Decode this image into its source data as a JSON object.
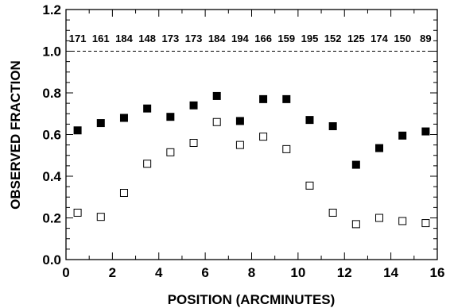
{
  "chart_data": {
    "type": "scatter",
    "xlabel": "POSITION (ARCMINUTES)",
    "ylabel": "OBSERVED FRACTION",
    "xlim": [
      0,
      16
    ],
    "ylim": [
      0,
      1.2
    ],
    "x_ticks": [
      "0",
      "2",
      "4",
      "6",
      "8",
      "10",
      "12",
      "14",
      "16"
    ],
    "y_ticks": [
      "0.0",
      "0.2",
      "0.4",
      "0.6",
      "0.8",
      "1.0",
      "1.2"
    ],
    "reference_line": {
      "y": 1.0,
      "style": "dashed"
    },
    "x": [
      0.5,
      1.5,
      2.5,
      3.5,
      4.5,
      5.5,
      6.5,
      7.5,
      8.5,
      9.5,
      10.5,
      11.5,
      12.5,
      13.5,
      14.5,
      15.5
    ],
    "counts": [
      "171",
      "161",
      "184",
      "148",
      "173",
      "173",
      "184",
      "194",
      "166",
      "159",
      "195",
      "152",
      "125",
      "174",
      "150",
      "89"
    ],
    "series": [
      {
        "marker": "filled-square",
        "color": "#000000",
        "values": [
          0.62,
          0.655,
          0.68,
          0.725,
          0.685,
          0.74,
          0.785,
          0.665,
          0.77,
          0.77,
          0.67,
          0.64,
          0.455,
          0.535,
          0.595,
          0.615
        ]
      },
      {
        "marker": "open-square",
        "color": "#000000",
        "values": [
          0.225,
          0.205,
          0.32,
          0.46,
          0.515,
          0.56,
          0.66,
          0.55,
          0.59,
          0.53,
          0.355,
          0.225,
          0.17,
          0.2,
          0.185,
          0.175
        ]
      }
    ]
  }
}
